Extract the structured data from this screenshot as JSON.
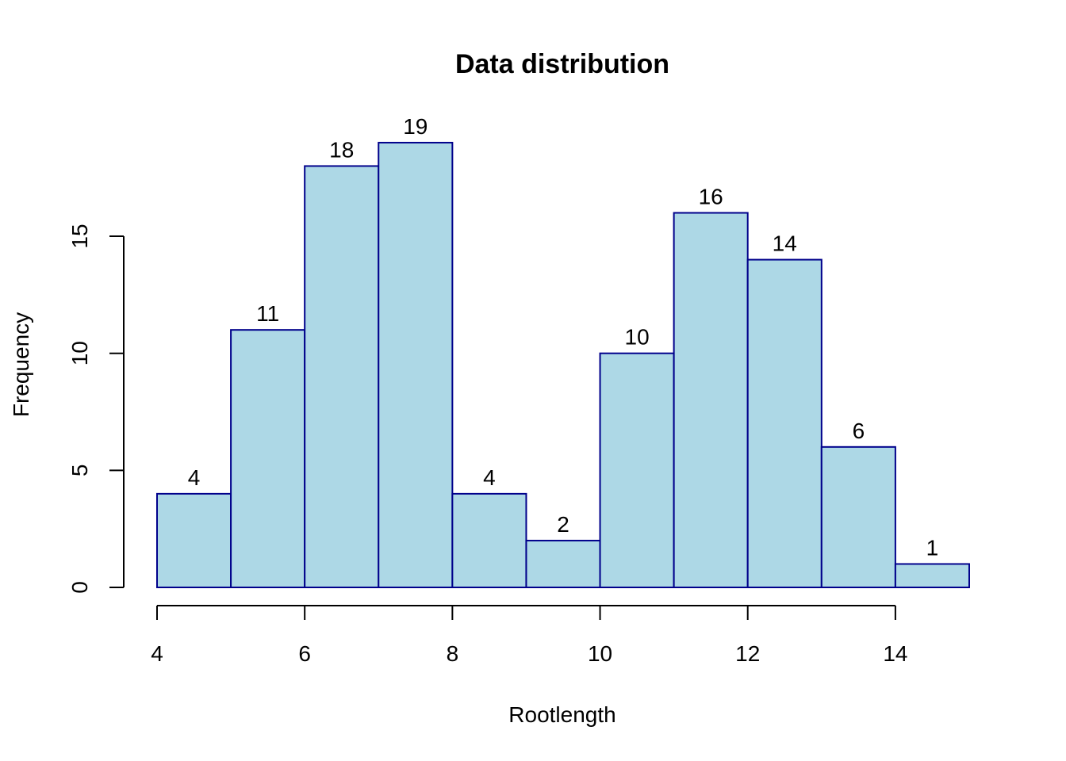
{
  "chart_data": {
    "type": "bar",
    "title": "Data distribution",
    "xlabel": "Rootlength",
    "ylabel": "Frequency",
    "bins": [
      {
        "start": 4,
        "end": 5,
        "count": 4
      },
      {
        "start": 5,
        "end": 6,
        "count": 11
      },
      {
        "start": 6,
        "end": 7,
        "count": 18
      },
      {
        "start": 7,
        "end": 8,
        "count": 19
      },
      {
        "start": 8,
        "end": 9,
        "count": 4
      },
      {
        "start": 9,
        "end": 10,
        "count": 2
      },
      {
        "start": 10,
        "end": 11,
        "count": 10
      },
      {
        "start": 11,
        "end": 12,
        "count": 16
      },
      {
        "start": 12,
        "end": 13,
        "count": 14
      },
      {
        "start": 13,
        "end": 14,
        "count": 6
      },
      {
        "start": 14,
        "end": 15,
        "count": 1
      }
    ],
    "data_labels": [
      "4",
      "11",
      "18",
      "19",
      "4",
      "2",
      "10",
      "16",
      "14",
      "6",
      "1"
    ],
    "x_ticks": [
      4,
      6,
      8,
      10,
      12,
      14
    ],
    "x_tick_labels": [
      "4",
      "6",
      "8",
      "10",
      "12",
      "14"
    ],
    "y_ticks": [
      0,
      5,
      10,
      15
    ],
    "y_tick_labels": [
      "0",
      "5",
      "10",
      "15"
    ],
    "xlim": [
      4,
      15
    ],
    "ylim": [
      0,
      19
    ],
    "grid": false,
    "bar_fill_color": "#add8e6",
    "bar_edge_color": "#00008b"
  }
}
